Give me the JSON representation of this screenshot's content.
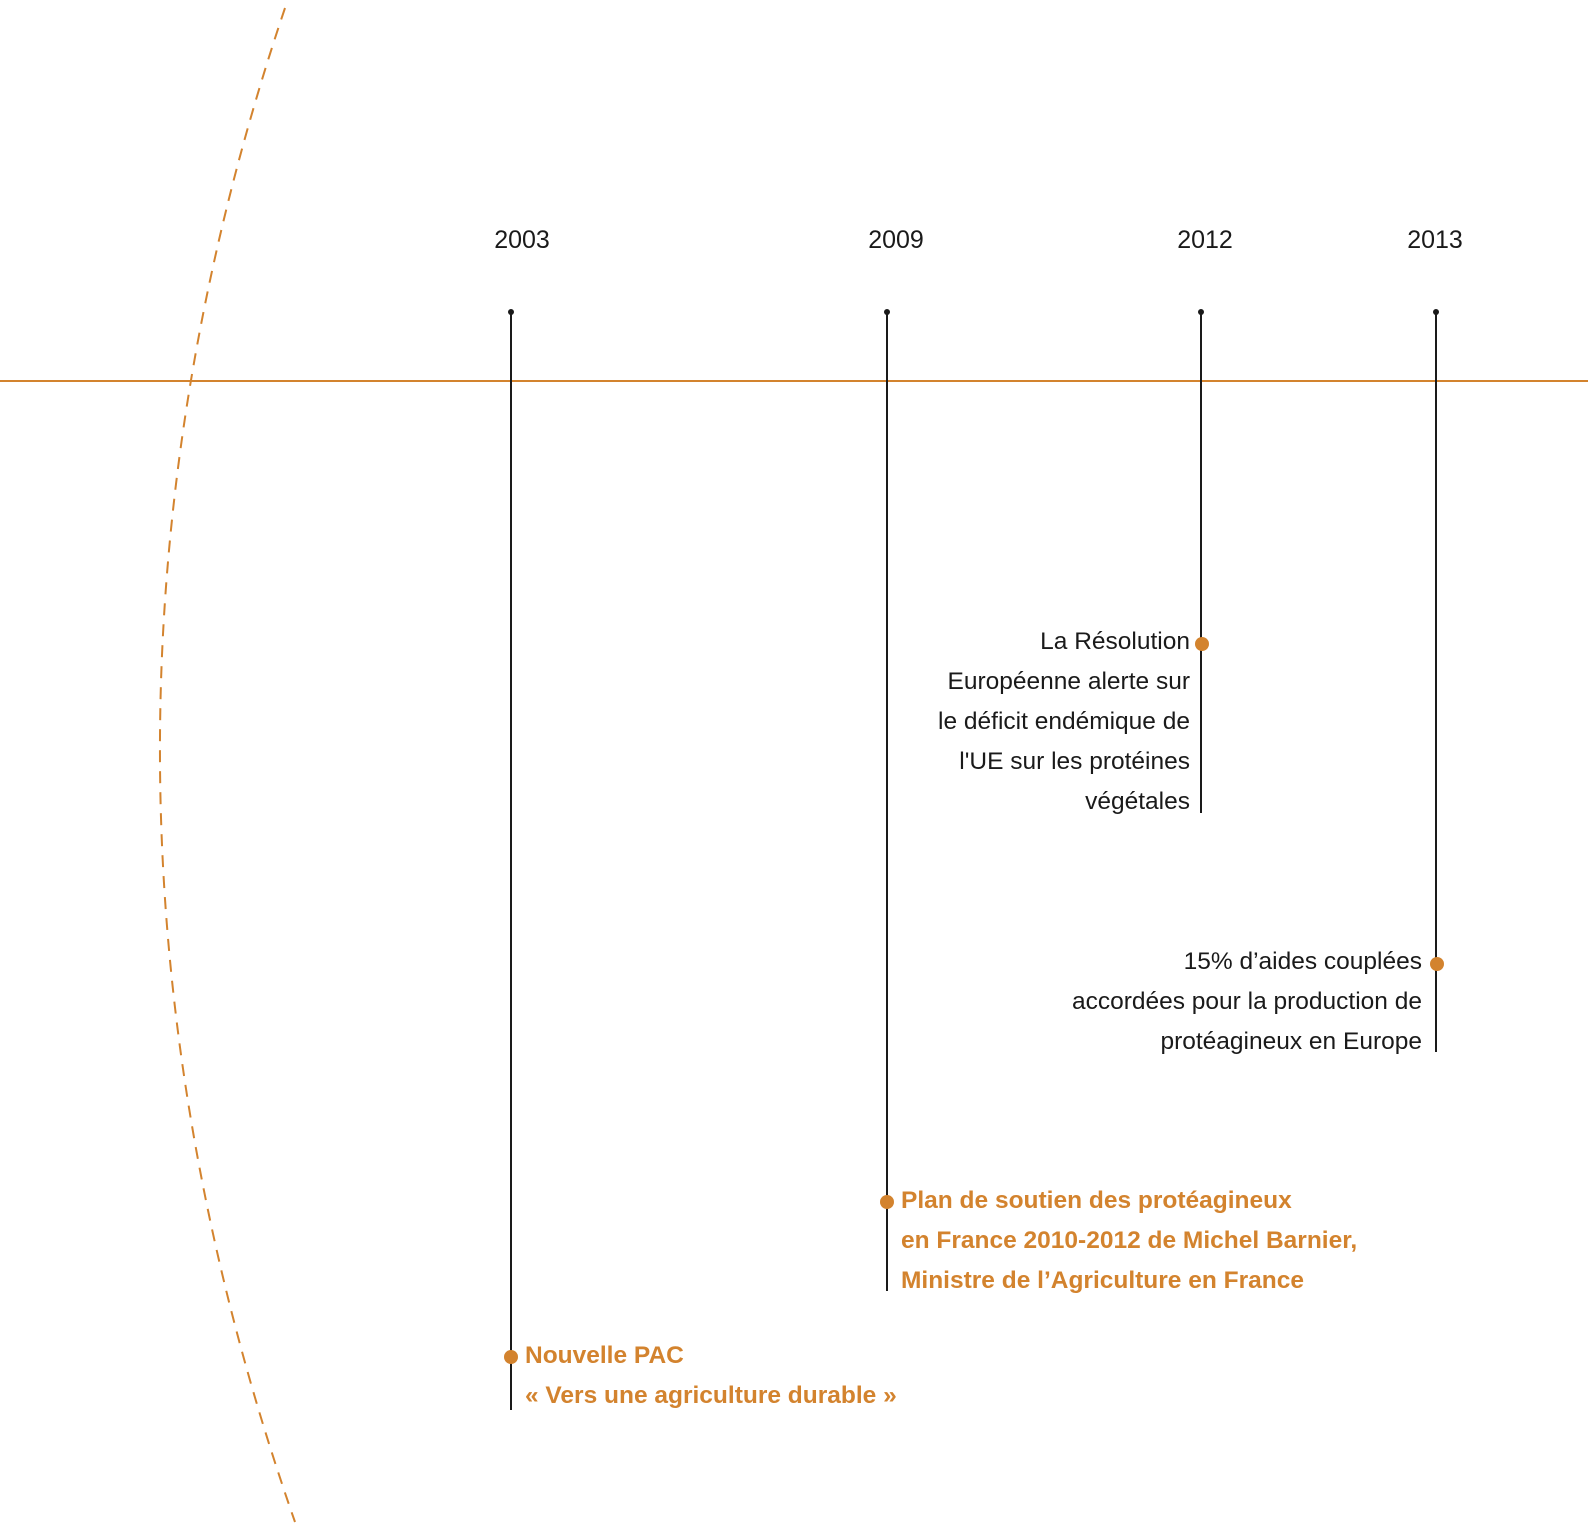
{
  "colors": {
    "accent": "#d3832e",
    "ink": "#1a1a1a",
    "background": "#ffffff"
  },
  "timeline": {
    "years": [
      {
        "label": "2003"
      },
      {
        "label": "2009"
      },
      {
        "label": "2012"
      },
      {
        "label": "2013"
      }
    ],
    "events": [
      {
        "year": "2012",
        "style": "plain",
        "lines": [
          "La Résolution",
          "Européenne alerte sur",
          "le déficit endémique de",
          "l'UE sur les protéines",
          "végétales"
        ]
      },
      {
        "year": "2013",
        "style": "plain",
        "lines": [
          "15% d’aides couplées",
          "accordées pour la production de",
          "protéagineux en Europe"
        ]
      },
      {
        "year": "2009",
        "style": "highlight",
        "lines": [
          "Plan de soutien des protéagineux",
          "en France 2010-2012 de Michel Barnier,",
          "Ministre de l’Agriculture en France"
        ]
      },
      {
        "year": "2003",
        "style": "highlight",
        "lines": [
          "Nouvelle PAC",
          "« Vers une agriculture durable »"
        ]
      }
    ]
  }
}
